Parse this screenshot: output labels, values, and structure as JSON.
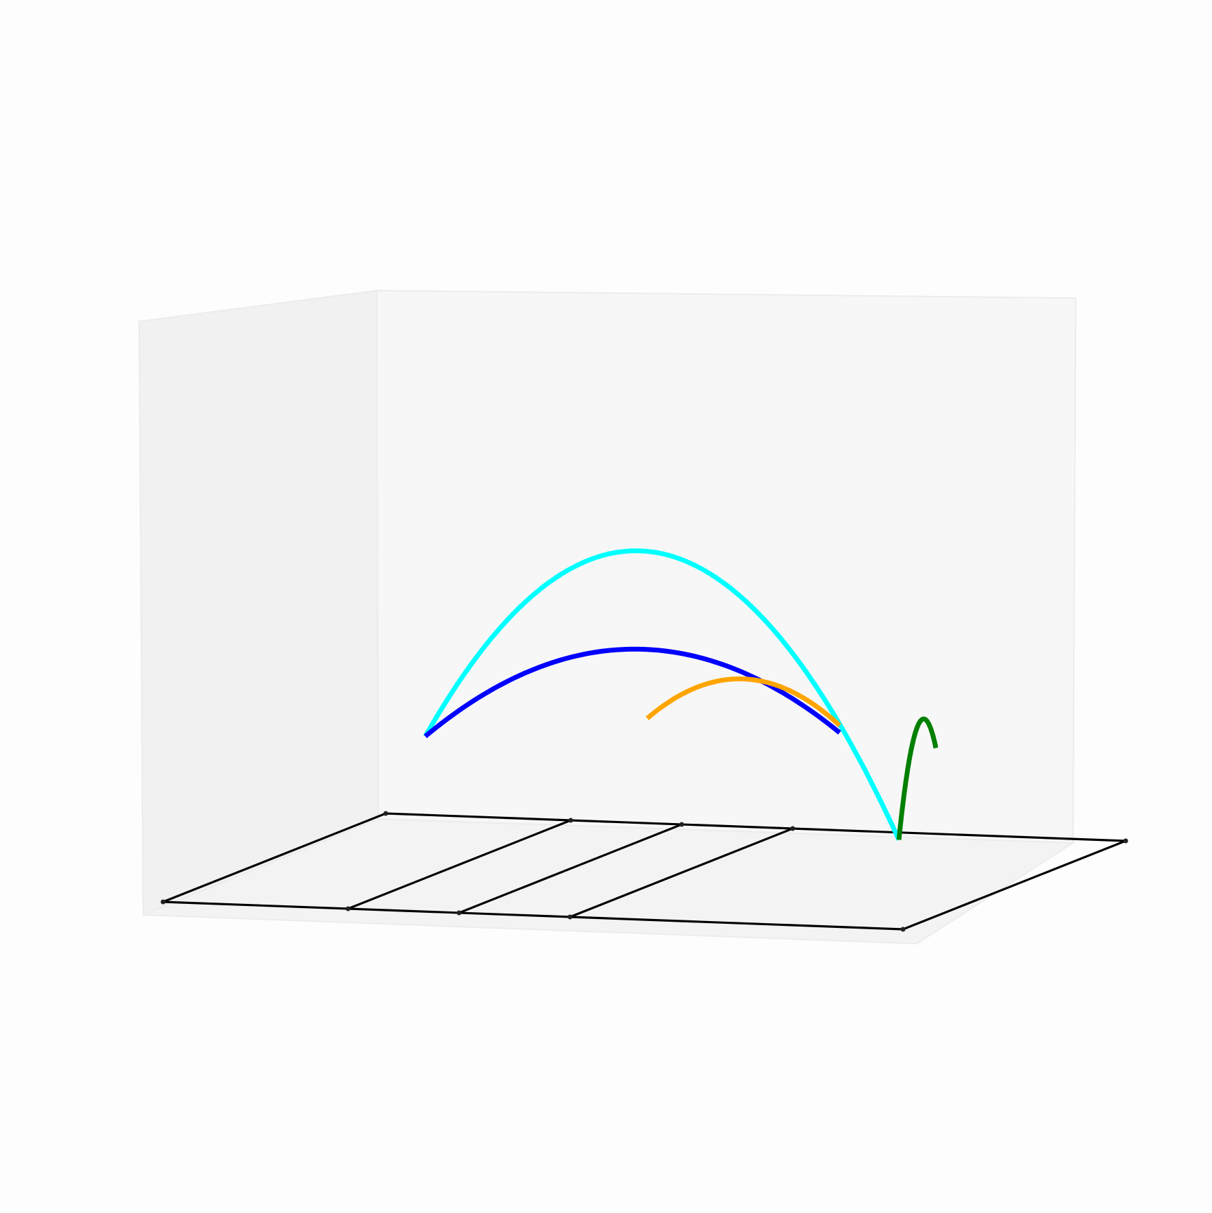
{
  "chart_data": {
    "type": "line3d",
    "title": "",
    "xlabel": "",
    "ylabel": "",
    "zlabel": "",
    "axes_visible": false,
    "grid": false,
    "legend": "none",
    "xlim": [
      0,
      10
    ],
    "ylim": [
      0,
      5
    ],
    "zlim": [
      0,
      3
    ],
    "floor_polygons": [
      {
        "name": "court-outline",
        "closed": true,
        "points": [
          [
            0,
            0
          ],
          [
            10,
            0
          ],
          [
            10,
            5
          ],
          [
            0,
            5
          ]
        ]
      },
      {
        "name": "court-line-1",
        "closed": false,
        "points": [
          [
            2.5,
            0
          ],
          [
            2.5,
            5
          ]
        ]
      },
      {
        "name": "court-line-2",
        "closed": false,
        "points": [
          [
            4,
            0
          ],
          [
            4,
            5
          ]
        ]
      },
      {
        "name": "court-line-3",
        "closed": false,
        "points": [
          [
            5.5,
            0
          ],
          [
            5.5,
            5
          ]
        ]
      }
    ],
    "series": [
      {
        "color": "#00ffff",
        "x": [
          2.1,
          8.5
        ],
        "y": [
          2.4,
          2.4
        ],
        "z0": 0.9,
        "z1": 0.3,
        "zpeak": 2.25,
        "width": 7
      },
      {
        "color": "#0000ff",
        "x": [
          2.1,
          8.0
        ],
        "y": [
          2.4,
          1.9
        ],
        "z0": 0.9,
        "z1": 1.1,
        "zpeak": 1.6,
        "width": 7
      },
      {
        "color": "#ffa500",
        "x": [
          5.4,
          8.0
        ],
        "y": [
          1.9,
          1.9
        ],
        "z0": 1.15,
        "z1": 1.15,
        "zpeak": 1.45,
        "width": 7
      },
      {
        "color": "#008000",
        "x": [
          8.5,
          9.0
        ],
        "y": [
          2.4,
          2.4
        ],
        "z0": 0.3,
        "z1": 0.95,
        "zpeak": 1.15,
        "width": 7
      }
    ]
  }
}
